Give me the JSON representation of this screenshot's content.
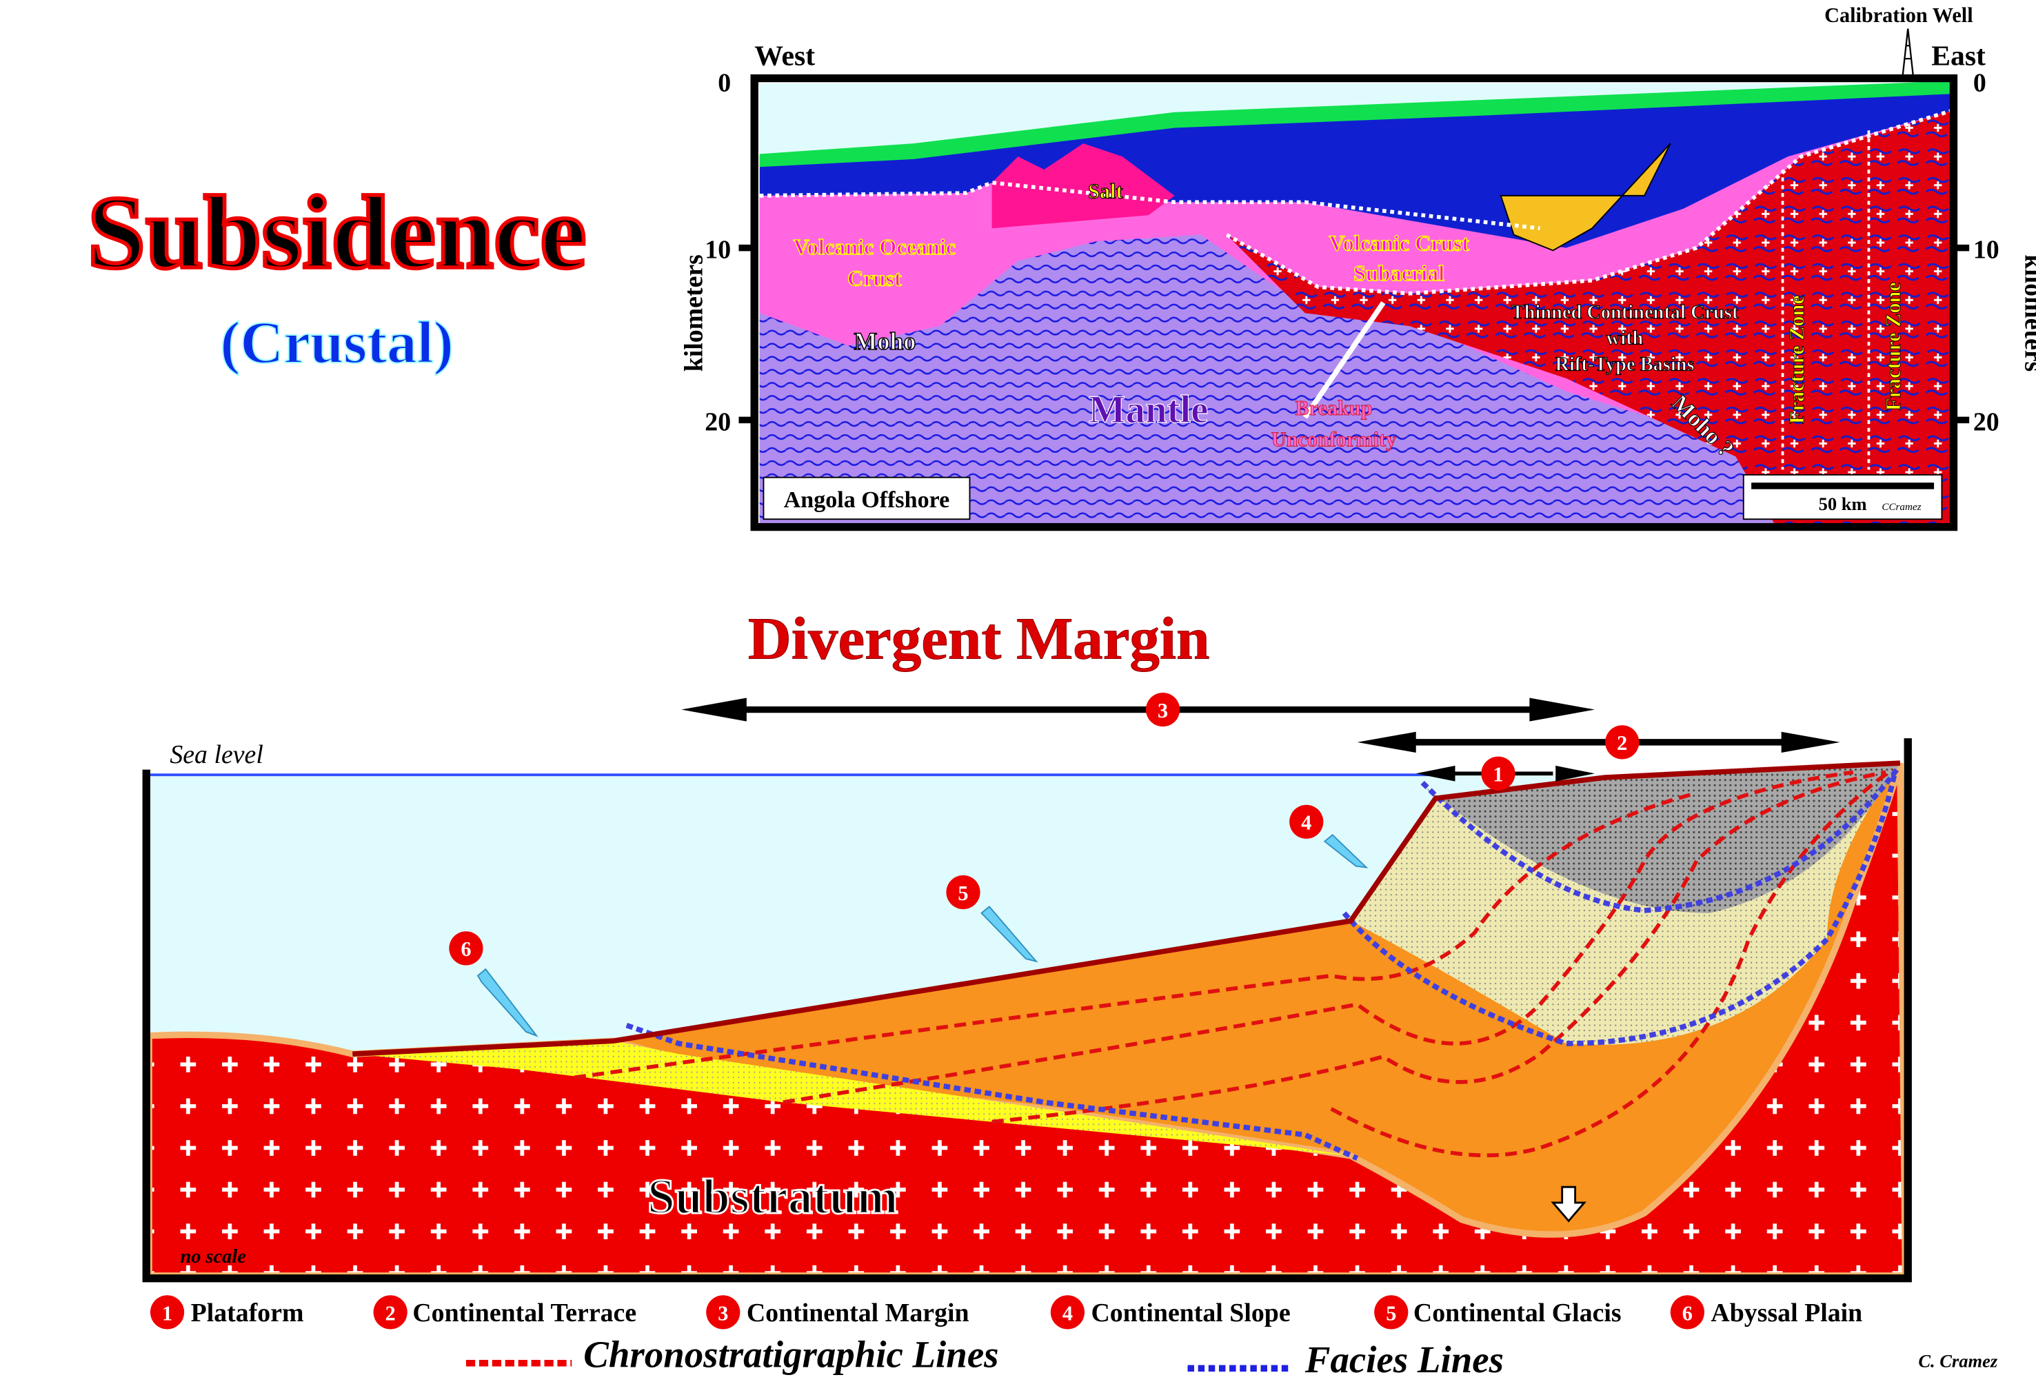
{
  "title": {
    "main": "Subsidence",
    "sub": "(Crustal)"
  },
  "seismic": {
    "west": "West",
    "east": "East",
    "well": "Calibration Well",
    "axis_label": "kilometers",
    "ticks": [
      "0",
      "10",
      "20"
    ],
    "labels": {
      "salt": "Salt",
      "voc1": "Volcanic Oceanic",
      "voc2": "Crust",
      "moho": "Moho",
      "vcs1": "Volcanic Crust",
      "vcs2": "Subaerial",
      "mantle": "Mantle",
      "bu1": "Breakup",
      "bu2": "Unconformity",
      "tcc1": "Thinned Continental Crust",
      "tcc2": "with",
      "tcc3": "Rift-Type Basins",
      "moho_q": "Moho ?",
      "fz": "Fracture Zone"
    },
    "location": "Angola Offshore",
    "scale": "50 km",
    "credit": "CCramez"
  },
  "diagram": {
    "title": "Divergent Margin",
    "sea_level": "Sea level",
    "substratum": "Substratum",
    "no_scale": "no scale",
    "markers": [
      "1",
      "2",
      "3",
      "4",
      "5",
      "6"
    ]
  },
  "legend": {
    "items": [
      {
        "n": "1",
        "label": "Plataform"
      },
      {
        "n": "2",
        "label": "Continental Terrace"
      },
      {
        "n": "3",
        "label": "Continental Margin"
      },
      {
        "n": "4",
        "label": "Continental Slope"
      },
      {
        "n": "5",
        "label": "Continental Glacis"
      },
      {
        "n": "6",
        "label": "Abyssal Plain"
      }
    ],
    "chrono": "Chronostratigraphic Lines",
    "facies": "Facies Lines",
    "credit": "C. Cramez"
  },
  "colors": {
    "red": "#ee0000",
    "orange": "#f7931e",
    "sea": "#e0fbfd",
    "mantle": "#b08cf0"
  }
}
